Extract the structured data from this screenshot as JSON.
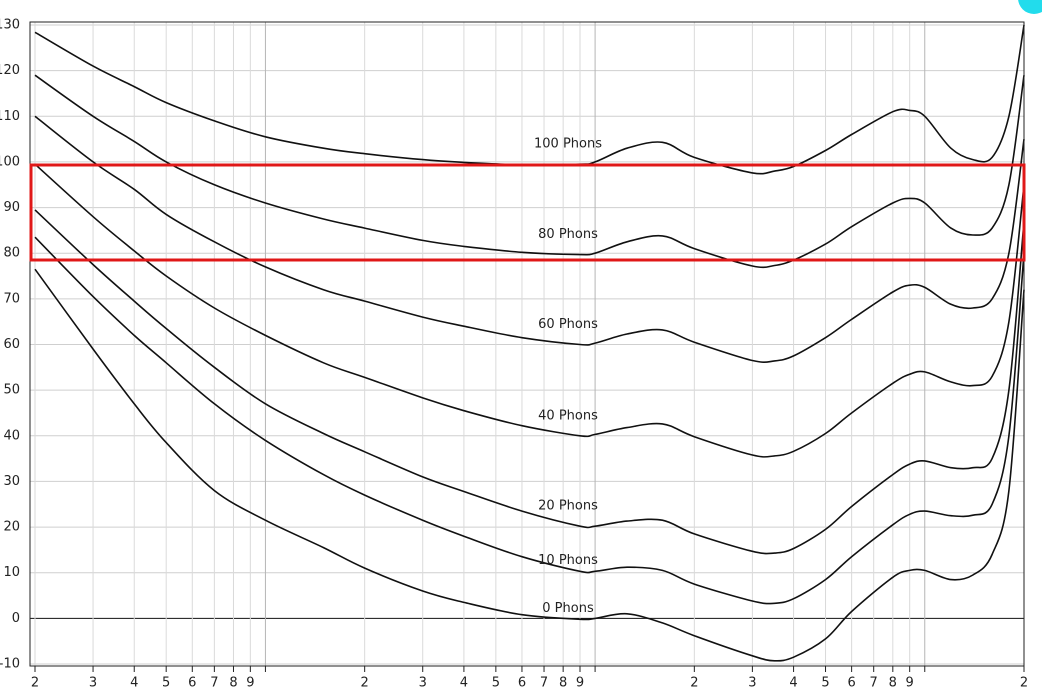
{
  "chart_data": {
    "type": "line",
    "xscale": "log",
    "xlim": [
      20,
      20000
    ],
    "ylim": [
      -10,
      130
    ],
    "grid": true,
    "yticks": [
      -10,
      0,
      10,
      20,
      30,
      40,
      50,
      60,
      70,
      80,
      90,
      100,
      110,
      120,
      130
    ],
    "xticks": [
      {
        "value": 20,
        "label": "2"
      },
      {
        "value": 30,
        "label": "3"
      },
      {
        "value": 40,
        "label": "4"
      },
      {
        "value": 50,
        "label": "5"
      },
      {
        "value": 60,
        "label": "6"
      },
      {
        "value": 70,
        "label": "7"
      },
      {
        "value": 80,
        "label": "8"
      },
      {
        "value": 90,
        "label": "9"
      },
      {
        "value": 100,
        "label": null
      },
      {
        "value": 200,
        "label": "2"
      },
      {
        "value": 300,
        "label": "3"
      },
      {
        "value": 400,
        "label": "4"
      },
      {
        "value": 500,
        "label": "5"
      },
      {
        "value": 600,
        "label": "6"
      },
      {
        "value": 700,
        "label": "7"
      },
      {
        "value": 800,
        "label": "8"
      },
      {
        "value": 900,
        "label": "9"
      },
      {
        "value": 1000,
        "label": null
      },
      {
        "value": 2000,
        "label": "2"
      },
      {
        "value": 3000,
        "label": "3"
      },
      {
        "value": 4000,
        "label": "4"
      },
      {
        "value": 5000,
        "label": "5"
      },
      {
        "value": 6000,
        "label": "6"
      },
      {
        "value": 7000,
        "label": "7"
      },
      {
        "value": 8000,
        "label": "8"
      },
      {
        "value": 9000,
        "label": "9"
      },
      {
        "value": 10000,
        "label": null
      },
      {
        "value": 20000,
        "label": "2"
      }
    ],
    "x": [
      20,
      30,
      40,
      50,
      70,
      100,
      150,
      200,
      300,
      400,
      600,
      900,
      1000,
      1250,
      1600,
      2000,
      3000,
      3500,
      4000,
      5000,
      6000,
      8000,
      9000,
      10000,
      12000,
      14000,
      16000,
      18000,
      20000
    ],
    "series": [
      {
        "name": "100 Phons",
        "color": "#111111",
        "values": [
          128.4,
          121,
          116.5,
          113,
          109,
          105.5,
          103,
          101.8,
          100.5,
          99.9,
          99.4,
          99.5,
          100,
          103,
          104.3,
          101,
          97.6,
          98,
          99,
          102.5,
          106,
          111,
          111.3,
          110,
          103,
          100.5,
          101,
          110,
          130
        ]
      },
      {
        "name": "80 Phons",
        "color": "#111111",
        "values": [
          119,
          110,
          104.5,
          100,
          95,
          91,
          87.5,
          85.5,
          82.8,
          81.5,
          80.2,
          79.7,
          80,
          82.5,
          83.8,
          81,
          77.2,
          77.3,
          78.5,
          82,
          85.8,
          91,
          92,
          91,
          85.5,
          84,
          85.5,
          95,
          119
        ]
      },
      {
        "name": "60 Phons",
        "color": "#111111",
        "values": [
          110,
          100,
          94,
          88.5,
          82.5,
          77,
          72,
          69.5,
          66,
          64,
          61.5,
          60,
          60.3,
          62.3,
          63.2,
          60.5,
          56.5,
          56.4,
          57.5,
          61.5,
          65.5,
          71.5,
          73,
          72.5,
          68.8,
          68,
          70,
          80,
          105
        ]
      },
      {
        "name": "40 Phons",
        "color": "#111111",
        "values": [
          99.5,
          88,
          80.5,
          75,
          68,
          62,
          56,
          52.8,
          48.3,
          45.5,
          42.2,
          40,
          40.3,
          41.8,
          42.6,
          39.8,
          35.8,
          35.6,
          36.6,
          40.5,
          45,
          51.5,
          53.5,
          54,
          51.8,
          51,
          53,
          65,
          95
        ]
      },
      {
        "name": "20 Phons",
        "color": "#111111",
        "values": [
          89.5,
          77.5,
          69.5,
          63.5,
          55,
          47,
          40.5,
          36.5,
          31,
          27.8,
          23.5,
          20.2,
          20.2,
          21.3,
          21.5,
          18.5,
          14.7,
          14.3,
          15.3,
          19.5,
          24.5,
          31.5,
          33.8,
          34.5,
          33,
          33,
          35,
          50,
          87
        ]
      },
      {
        "name": "10 Phons",
        "color": "#111111",
        "values": [
          83.5,
          70.5,
          62,
          56,
          47,
          39,
          31.5,
          27,
          21.5,
          18,
          13.5,
          10.3,
          10.3,
          11.2,
          10.5,
          7.5,
          3.8,
          3.3,
          4.3,
          8.5,
          13.5,
          20.5,
          22.8,
          23.5,
          22.5,
          22.6,
          25,
          40,
          80
        ]
      },
      {
        "name": "0 Phons",
        "color": "#111111",
        "values": [
          76.5,
          59,
          47,
          38.5,
          28,
          21.5,
          15.5,
          11,
          6,
          3.5,
          0.8,
          -0.2,
          0,
          1,
          -1,
          -3.8,
          -8.2,
          -9.3,
          -8.5,
          -4.5,
          1.5,
          9,
          10.5,
          10.5,
          8.5,
          9.5,
          14,
          28,
          72
        ]
      }
    ]
  }
}
